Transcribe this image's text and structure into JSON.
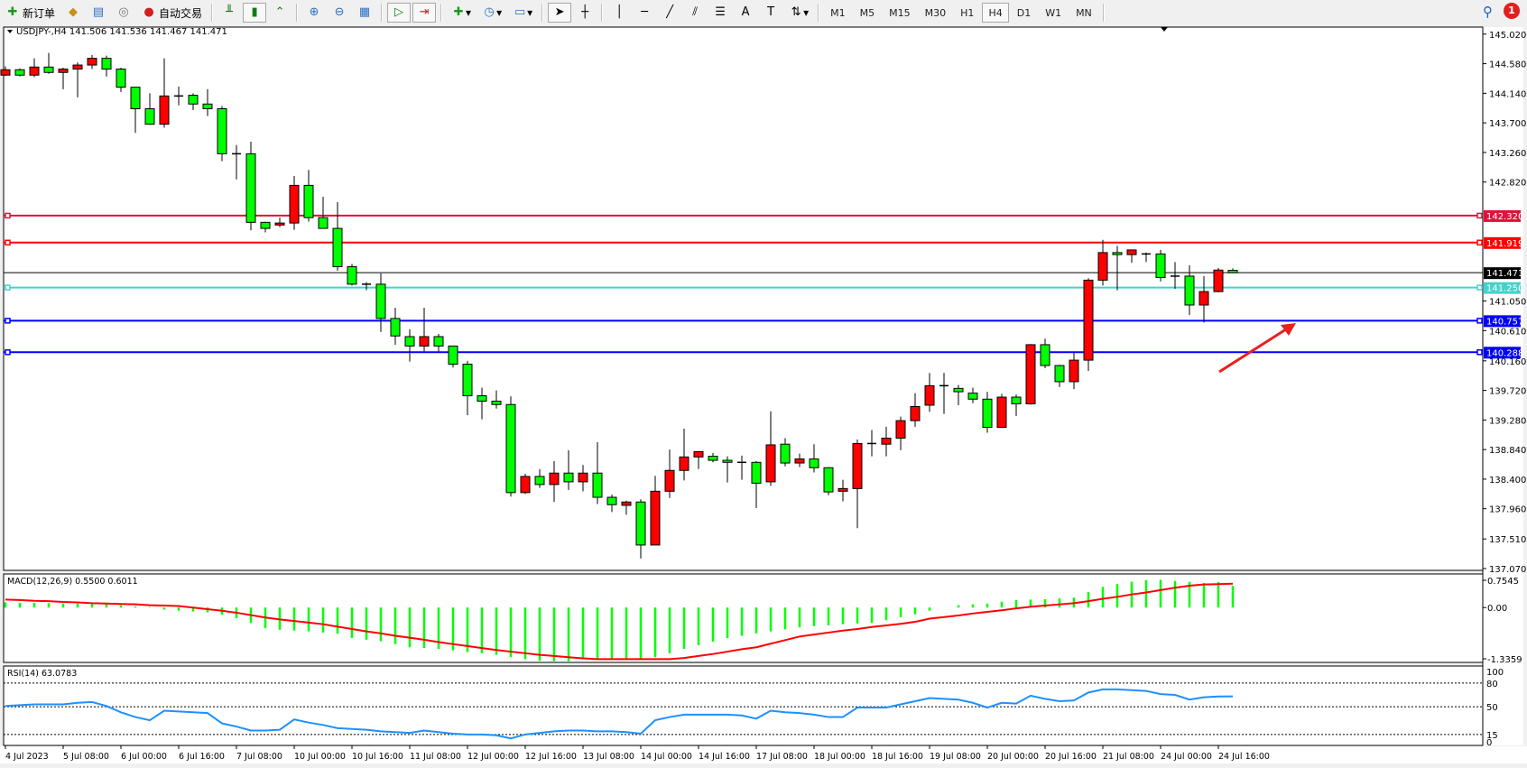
{
  "toolbar": {
    "new_order": "新订单",
    "auto_trading": "自动交易",
    "timeframes": [
      "M1",
      "M5",
      "M15",
      "M30",
      "H1",
      "H4",
      "D1",
      "W1",
      "MN"
    ],
    "active_timeframe": "H4",
    "notification_count": "1",
    "icons": [
      "new-order-icon",
      "market-watch-icon",
      "navigator-icon",
      "signals-icon",
      "auto-trading-icon",
      "bar-chart-icon",
      "candlestick-icon",
      "line-chart-icon",
      "zoom-in-icon",
      "zoom-out-icon",
      "tile-windows-icon",
      "autoscroll-icon",
      "chart-shift-icon",
      "indicators-icon",
      "periods-icon",
      "templates-icon",
      "cursor-icon",
      "crosshair-icon",
      "vertical-line-icon",
      "horizontal-line-icon",
      "trendline-icon",
      "equidistant-channel-icon",
      "fibonacci-icon",
      "text-icon",
      "text-label-icon",
      "arrows-icon",
      "search-icon",
      "notification-icon"
    ]
  },
  "chart_header": "USDJPY-,H4  141.506 141.536 141.467 141.471",
  "colors": {
    "bull": "#ff0000",
    "bear": "#00ff00",
    "macd_hist": "#00ff00",
    "signal": "#ff0000",
    "rsi": "#1e90ff",
    "line_crimson": "#dc143c",
    "line_red": "#ff0000",
    "line_turquoise": "#48d1cc",
    "line_blue": "#0000ff",
    "bid": "#000000"
  },
  "chart_data": {
    "type": "candlestick",
    "symbol": "USDJPY-",
    "timeframe": "H4",
    "ylim": [
      137.07,
      145.02
    ],
    "price_ticks": [
      "145.020",
      "144.580",
      "144.140",
      "143.700",
      "143.260",
      "142.820",
      "141.050",
      "140.610",
      "140.160",
      "139.720",
      "139.280",
      "138.840",
      "138.400",
      "137.960",
      "137.510",
      "137.070"
    ],
    "time_labels": [
      "4 Jul 2023",
      "5 Jul 08:00",
      "6 Jul 00:00",
      "6 Jul 16:00",
      "7 Jul 08:00",
      "10 Jul 00:00",
      "10 Jul 16:00",
      "11 Jul 08:00",
      "12 Jul 00:00",
      "12 Jul 16:00",
      "13 Jul 08:00",
      "14 Jul 00:00",
      "14 Jul 16:00",
      "17 Jul 08:00",
      "18 Jul 00:00",
      "18 Jul 16:00",
      "19 Jul 08:00",
      "20 Jul 00:00",
      "20 Jul 16:00",
      "21 Jul 08:00",
      "24 Jul 00:00",
      "24 Jul 16:00"
    ],
    "ohlc": [
      [
        144.41,
        144.54,
        144.4,
        144.49
      ],
      [
        144.49,
        144.51,
        144.39,
        144.41
      ],
      [
        144.41,
        144.66,
        144.38,
        144.53
      ],
      [
        144.53,
        144.74,
        144.43,
        144.45
      ],
      [
        144.45,
        144.52,
        144.2,
        144.5
      ],
      [
        144.5,
        144.6,
        144.08,
        144.56
      ],
      [
        144.56,
        144.71,
        144.5,
        144.66
      ],
      [
        144.66,
        144.7,
        144.39,
        144.5
      ],
      [
        144.5,
        144.52,
        144.16,
        144.23
      ],
      [
        144.23,
        144.23,
        143.55,
        143.91
      ],
      [
        143.91,
        144.14,
        143.67,
        143.68
      ],
      [
        143.68,
        144.66,
        143.63,
        144.1
      ],
      [
        144.1,
        144.24,
        143.96,
        144.1
      ],
      [
        144.11,
        144.14,
        143.89,
        143.98
      ],
      [
        143.98,
        144.2,
        143.8,
        143.91
      ],
      [
        143.91,
        143.95,
        143.13,
        143.24
      ],
      [
        143.24,
        143.37,
        142.86,
        143.24
      ],
      [
        143.24,
        143.42,
        142.1,
        142.22
      ],
      [
        142.22,
        142.23,
        142.07,
        142.13
      ],
      [
        142.18,
        142.29,
        142.15,
        142.21
      ],
      [
        142.21,
        142.91,
        142.11,
        142.77
      ],
      [
        142.77,
        143.0,
        142.23,
        142.29
      ],
      [
        142.29,
        142.6,
        142.13,
        142.13
      ],
      [
        142.13,
        142.52,
        141.5,
        141.56
      ],
      [
        141.56,
        141.6,
        141.28,
        141.3
      ],
      [
        141.3,
        141.33,
        141.21,
        141.29
      ],
      [
        141.3,
        141.46,
        140.59,
        140.79
      ],
      [
        140.79,
        140.95,
        140.4,
        140.53
      ],
      [
        140.52,
        140.63,
        140.15,
        140.38
      ],
      [
        140.38,
        140.95,
        140.3,
        140.52
      ],
      [
        140.52,
        140.56,
        140.3,
        140.38
      ],
      [
        140.38,
        140.38,
        140.06,
        140.11
      ],
      [
        140.11,
        140.16,
        139.35,
        139.64
      ],
      [
        139.64,
        139.76,
        139.29,
        139.56
      ],
      [
        139.56,
        139.72,
        139.45,
        139.51
      ],
      [
        139.51,
        139.63,
        138.14,
        138.2
      ],
      [
        138.2,
        138.48,
        138.18,
        138.44
      ],
      [
        138.44,
        138.55,
        138.27,
        138.32
      ],
      [
        138.32,
        138.67,
        138.06,
        138.49
      ],
      [
        138.49,
        138.83,
        138.24,
        138.36
      ],
      [
        138.36,
        138.61,
        138.22,
        138.49
      ],
      [
        138.49,
        138.95,
        138.03,
        138.13
      ],
      [
        138.13,
        138.17,
        137.91,
        138.02
      ],
      [
        138.01,
        138.08,
        137.87,
        138.06
      ],
      [
        138.06,
        138.1,
        137.22,
        137.42
      ],
      [
        137.42,
        138.45,
        137.42,
        138.22
      ],
      [
        138.22,
        138.84,
        138.12,
        138.53
      ],
      [
        138.53,
        139.15,
        138.38,
        138.73
      ],
      [
        138.73,
        138.81,
        138.55,
        138.81
      ],
      [
        138.74,
        138.79,
        138.65,
        138.68
      ],
      [
        138.68,
        138.74,
        138.35,
        138.65
      ],
      [
        138.65,
        138.75,
        138.39,
        138.65
      ],
      [
        138.65,
        138.67,
        137.97,
        138.34
      ],
      [
        138.36,
        139.41,
        138.3,
        138.91
      ],
      [
        138.92,
        139.01,
        138.59,
        138.64
      ],
      [
        138.64,
        138.78,
        138.58,
        138.7
      ],
      [
        138.7,
        138.92,
        138.5,
        138.57
      ],
      [
        138.57,
        138.58,
        138.16,
        138.21
      ],
      [
        138.22,
        138.39,
        138.07,
        138.26
      ],
      [
        138.26,
        138.99,
        137.67,
        138.93
      ],
      [
        138.92,
        139.13,
        138.74,
        138.93
      ],
      [
        138.92,
        139.18,
        138.74,
        139.01
      ],
      [
        139.01,
        139.33,
        138.83,
        139.27
      ],
      [
        139.27,
        139.68,
        139.18,
        139.48
      ],
      [
        139.5,
        139.98,
        139.4,
        139.79
      ],
      [
        139.79,
        139.98,
        139.37,
        139.77
      ],
      [
        139.75,
        139.8,
        139.5,
        139.7
      ],
      [
        139.68,
        139.76,
        139.53,
        139.59
      ],
      [
        139.59,
        139.7,
        139.09,
        139.17
      ],
      [
        139.17,
        139.67,
        139.16,
        139.62
      ],
      [
        139.62,
        139.66,
        139.34,
        139.52
      ],
      [
        139.52,
        140.41,
        139.51,
        140.4
      ],
      [
        140.4,
        140.49,
        140.05,
        140.09
      ],
      [
        140.09,
        140.1,
        139.77,
        139.85
      ],
      [
        139.85,
        140.28,
        139.74,
        140.17
      ],
      [
        140.17,
        141.39,
        140.01,
        141.36
      ],
      [
        141.36,
        141.96,
        141.28,
        141.77
      ],
      [
        141.77,
        141.87,
        141.21,
        141.74
      ],
      [
        141.74,
        141.81,
        141.62,
        141.81
      ],
      [
        141.75,
        141.77,
        141.63,
        141.75
      ],
      [
        141.75,
        141.81,
        141.34,
        141.4
      ],
      [
        141.42,
        141.63,
        141.23,
        141.4
      ],
      [
        141.42,
        141.58,
        140.84,
        140.99
      ],
      [
        140.99,
        141.42,
        140.73,
        141.19
      ],
      [
        141.19,
        141.54,
        141.18,
        141.51
      ],
      [
        141.506,
        141.536,
        141.467,
        141.471
      ]
    ],
    "horizontal_lines": [
      {
        "price": "142.320",
        "color": "#dc143c"
      },
      {
        "price": "141.919",
        "color": "#ff0000"
      },
      {
        "price": "141.250",
        "color": "#48d1cc"
      },
      {
        "price": "140.757",
        "color": "#0000ff"
      },
      {
        "price": "140.288",
        "color": "#0000ff"
      }
    ],
    "bid": "141.471",
    "macd": {
      "label": "MACD(12,26,9) 0.5500 0.6011",
      "ylim": [
        -1.3359,
        0.7545
      ],
      "ticks": [
        "0.7545",
        "0.00",
        "-1.3359"
      ],
      "histogram": [
        0.13,
        0.12,
        0.12,
        0.11,
        0.1,
        0.1,
        0.09,
        0.08,
        0.06,
        0.03,
        0.01,
        -0.05,
        -0.08,
        -0.1,
        -0.12,
        -0.18,
        -0.27,
        -0.39,
        -0.52,
        -0.56,
        -0.58,
        -0.6,
        -0.63,
        -0.66,
        -0.77,
        -0.81,
        -0.85,
        -0.92,
        -1.0,
        -1.02,
        -1.04,
        -1.08,
        -1.12,
        -1.15,
        -1.19,
        -1.25,
        -1.3,
        -1.34,
        -1.35,
        -1.35,
        -1.3,
        -1.29,
        -1.28,
        -1.28,
        -1.28,
        -1.25,
        -1.15,
        -1.04,
        -0.95,
        -0.86,
        -0.77,
        -0.71,
        -0.65,
        -0.6,
        -0.55,
        -0.5,
        -0.47,
        -0.45,
        -0.42,
        -0.4,
        -0.39,
        -0.32,
        -0.24,
        -0.17,
        -0.08,
        0.0,
        0.06,
        0.08,
        0.1,
        0.15,
        0.19,
        0.2,
        0.21,
        0.23,
        0.25,
        0.39,
        0.52,
        0.59,
        0.65,
        0.69,
        0.7,
        0.67,
        0.65,
        0.62,
        0.64,
        0.55
      ],
      "signal": [
        0.2,
        0.19,
        0.17,
        0.16,
        0.14,
        0.13,
        0.11,
        0.1,
        0.09,
        0.08,
        0.06,
        0.05,
        0.04,
        0.0,
        -0.04,
        -0.08,
        -0.13,
        -0.19,
        -0.25,
        -0.3,
        -0.34,
        -0.38,
        -0.42,
        -0.48,
        -0.54,
        -0.6,
        -0.65,
        -0.71,
        -0.76,
        -0.81,
        -0.87,
        -0.92,
        -0.97,
        -1.02,
        -1.07,
        -1.11,
        -1.15,
        -1.19,
        -1.22,
        -1.25,
        -1.28,
        -1.3,
        -1.3,
        -1.3,
        -1.3,
        -1.3,
        -1.3,
        -1.27,
        -1.22,
        -1.17,
        -1.11,
        -1.05,
        -1.0,
        -0.91,
        -0.82,
        -0.73,
        -0.68,
        -0.63,
        -0.58,
        -0.54,
        -0.49,
        -0.45,
        -0.41,
        -0.36,
        -0.28,
        -0.24,
        -0.2,
        -0.15,
        -0.11,
        -0.07,
        -0.02,
        0.02,
        0.05,
        0.08,
        0.11,
        0.16,
        0.22,
        0.27,
        0.33,
        0.38,
        0.44,
        0.5,
        0.55,
        0.58,
        0.59,
        0.6011
      ]
    },
    "rsi": {
      "label": "RSI(14) 63.0783",
      "ylim": [
        0,
        100
      ],
      "ticks": [
        "100",
        "80",
        "50",
        "15",
        "0"
      ],
      "levels": [
        80,
        50,
        15
      ],
      "values": [
        51,
        52,
        53,
        53,
        53,
        55,
        56,
        51,
        43,
        37,
        33,
        45,
        44,
        43,
        42,
        29,
        25,
        20,
        20,
        21,
        34,
        30,
        27,
        23,
        22,
        21,
        19,
        18,
        17,
        20,
        18,
        16,
        15,
        15,
        14,
        10,
        15,
        17,
        19,
        20,
        20,
        19,
        19,
        18,
        16,
        33,
        37,
        40,
        40,
        40,
        40,
        39,
        35,
        45,
        43,
        42,
        40,
        37,
        37,
        49,
        49,
        49,
        53,
        57,
        61,
        60,
        59,
        55,
        49,
        55,
        54,
        64,
        60,
        57,
        58,
        68,
        72,
        72,
        71,
        70,
        66,
        65,
        59,
        62,
        63,
        63.0783
      ]
    }
  }
}
